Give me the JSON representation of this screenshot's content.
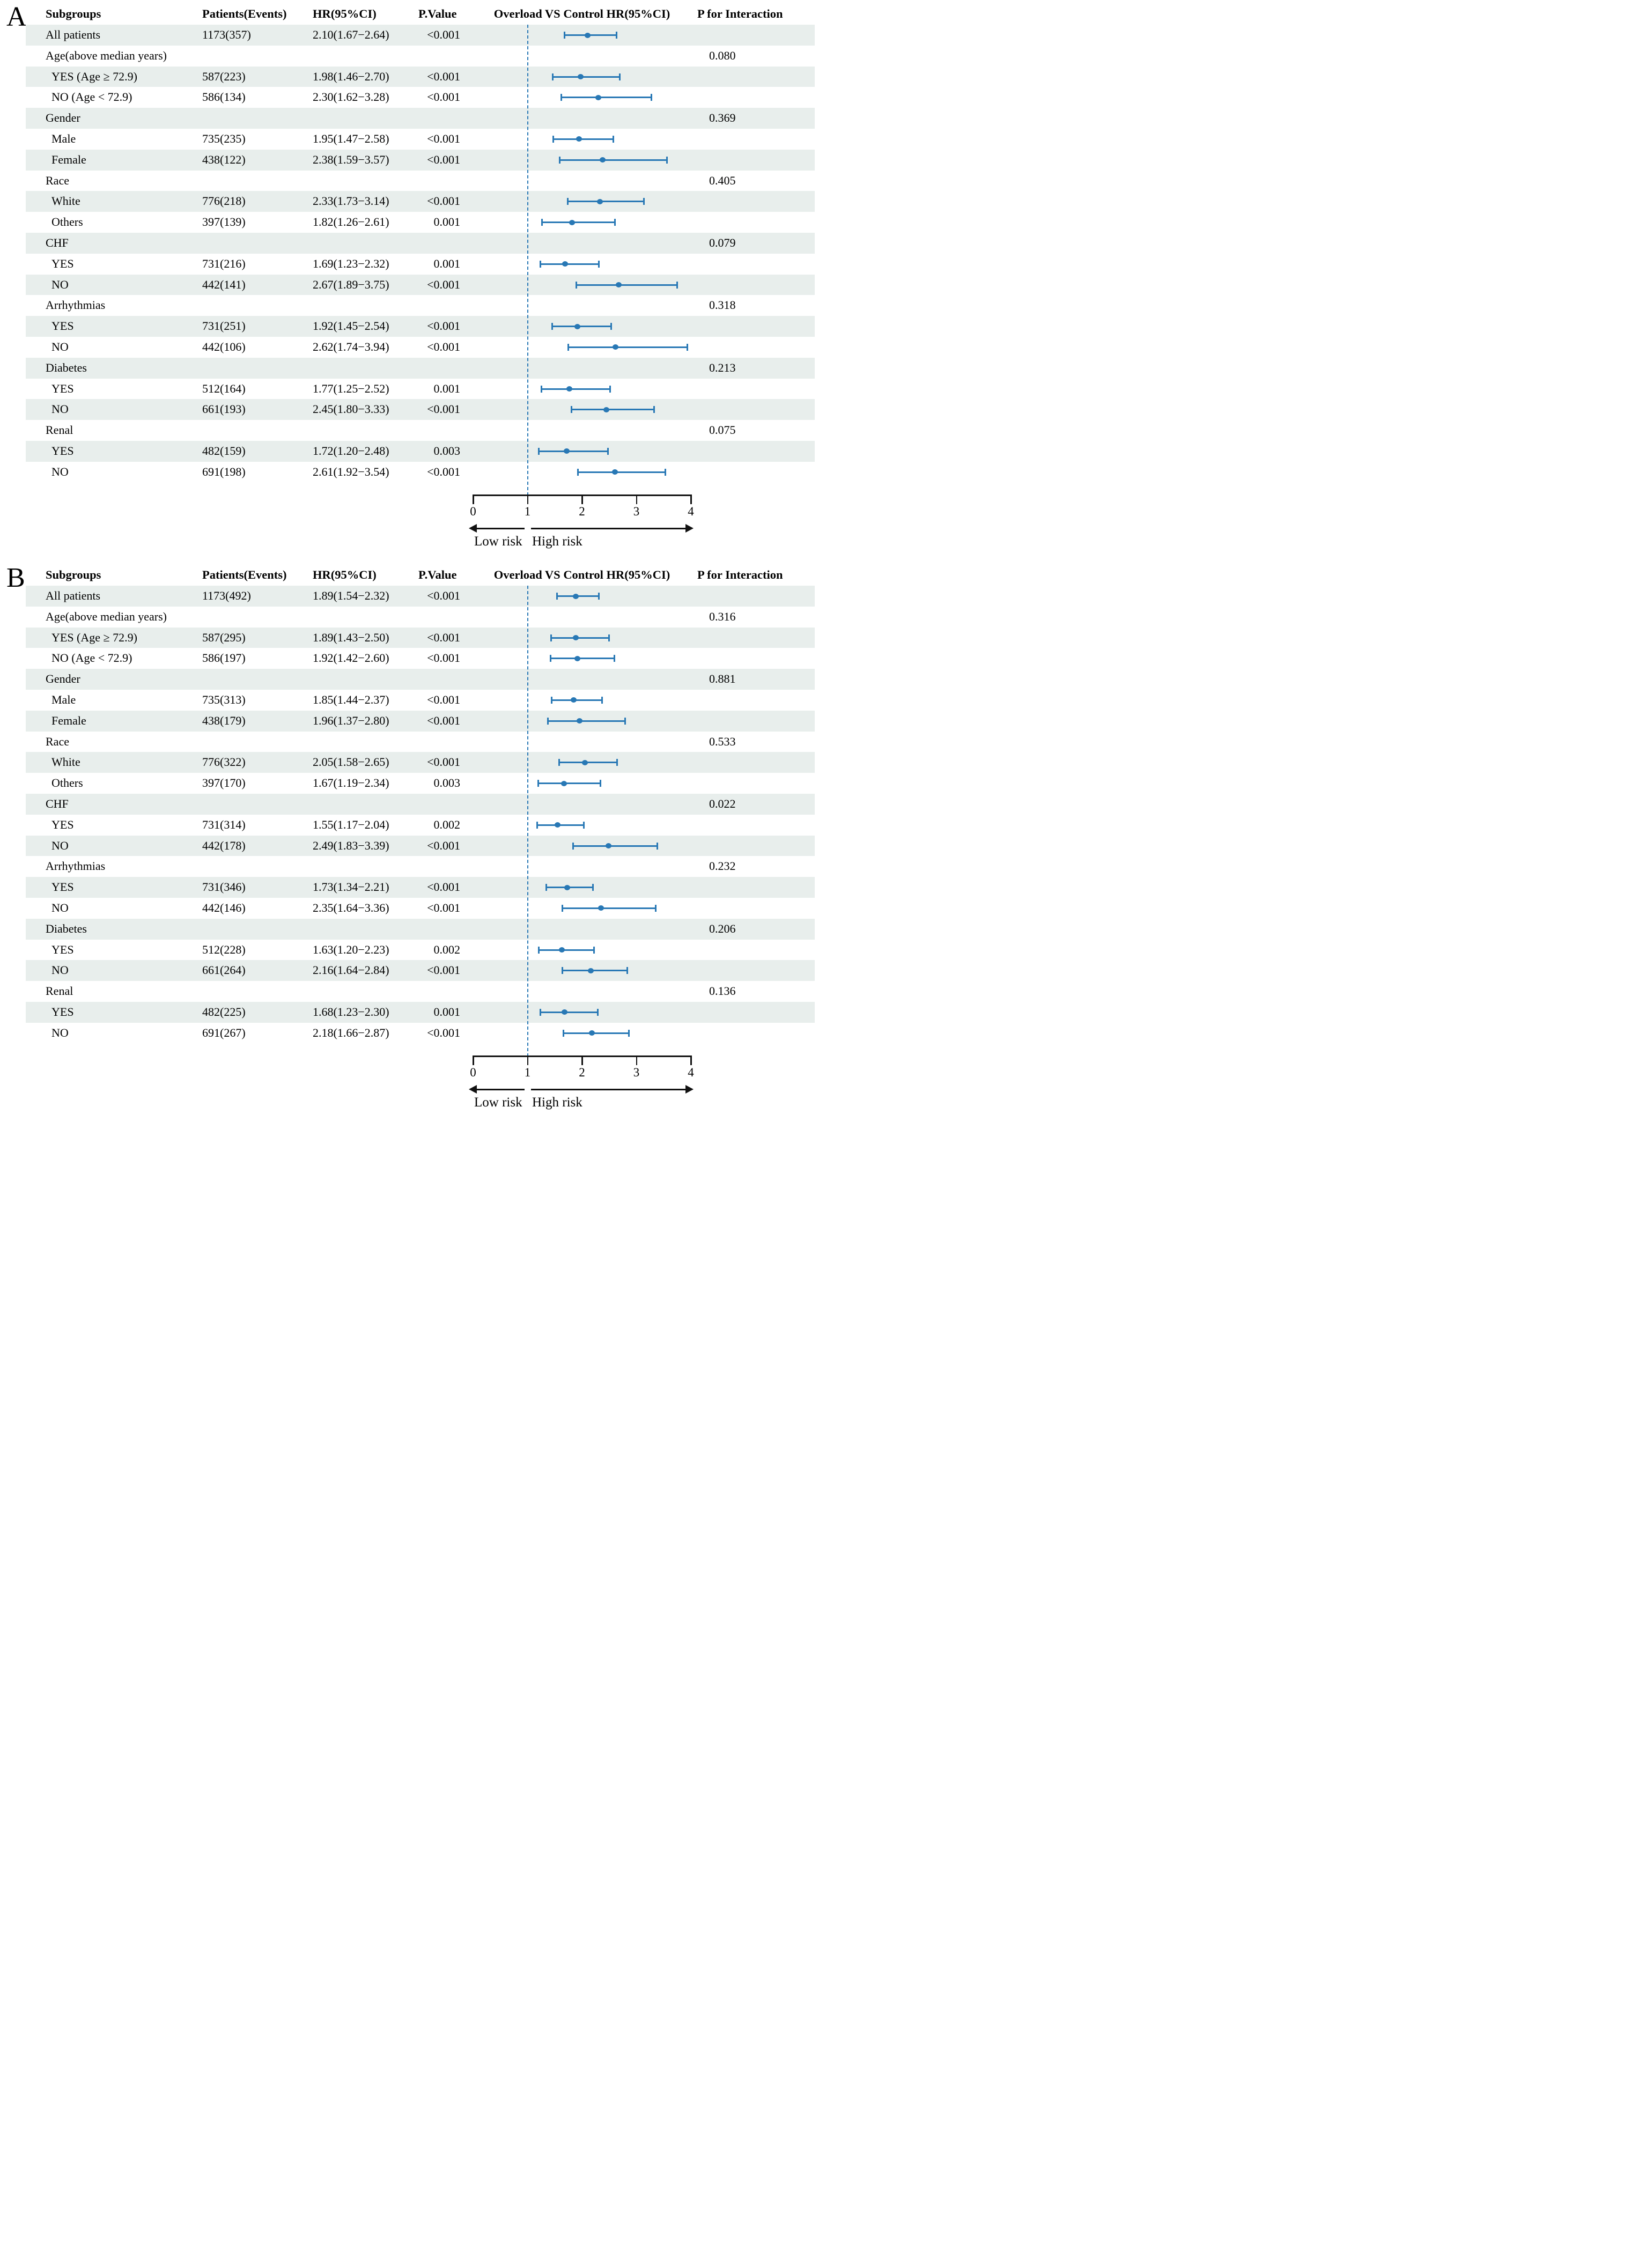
{
  "colors": {
    "accent": "#2878b5",
    "stripe": "#e8eeec",
    "axis": "#111111"
  },
  "chart_data": [
    {
      "type": "scatter",
      "panel_label": "A",
      "title": "Overload VS Control HR(95%CI)",
      "columns": {
        "subgroups": "Subgroups",
        "patients_events": "Patients(Events)",
        "hr_ci": "HR(95%CI)",
        "p_value": "P.Value",
        "plot": "Overload VS Control HR(95%CI)",
        "p_interaction": "P for Interaction"
      },
      "xlim": [
        0,
        4
      ],
      "xticks": [
        "0",
        "1",
        "2",
        "3",
        "4"
      ],
      "reference_line": 1,
      "grid": false,
      "legend_position": "none",
      "low_risk_label": "Low risk",
      "high_risk_label": "High risk",
      "rows": [
        {
          "subgroup": "All patients",
          "patients_events": "1173(357)",
          "hr_ci": "2.10(1.67−2.64)",
          "p_value": "<0.001",
          "hr": 2.1,
          "ci_low": 1.67,
          "ci_high": 2.64
        },
        {
          "subgroup": "Age(above median years)",
          "header": true,
          "p_interaction": "0.080"
        },
        {
          "subgroup": "YES (Age ≥ 72.9)",
          "indent": true,
          "patients_events": "587(223)",
          "hr_ci": "1.98(1.46−2.70)",
          "p_value": "<0.001",
          "hr": 1.98,
          "ci_low": 1.46,
          "ci_high": 2.7
        },
        {
          "subgroup": "NO (Age < 72.9)",
          "indent": true,
          "patients_events": "586(134)",
          "hr_ci": "2.30(1.62−3.28)",
          "p_value": "<0.001",
          "hr": 2.3,
          "ci_low": 1.62,
          "ci_high": 3.28
        },
        {
          "subgroup": "Gender",
          "header": true,
          "p_interaction": "0.369"
        },
        {
          "subgroup": "Male",
          "indent": true,
          "patients_events": "735(235)",
          "hr_ci": "1.95(1.47−2.58)",
          "p_value": "<0.001",
          "hr": 1.95,
          "ci_low": 1.47,
          "ci_high": 2.58
        },
        {
          "subgroup": "Female",
          "indent": true,
          "patients_events": "438(122)",
          "hr_ci": "2.38(1.59−3.57)",
          "p_value": "<0.001",
          "hr": 2.38,
          "ci_low": 1.59,
          "ci_high": 3.57
        },
        {
          "subgroup": "Race",
          "header": true,
          "p_interaction": "0.405"
        },
        {
          "subgroup": "White",
          "indent": true,
          "patients_events": "776(218)",
          "hr_ci": "2.33(1.73−3.14)",
          "p_value": "<0.001",
          "hr": 2.33,
          "ci_low": 1.73,
          "ci_high": 3.14
        },
        {
          "subgroup": "Others",
          "indent": true,
          "patients_events": "397(139)",
          "hr_ci": "1.82(1.26−2.61)",
          "p_value": "0.001",
          "hr": 1.82,
          "ci_low": 1.26,
          "ci_high": 2.61
        },
        {
          "subgroup": "CHF",
          "header": true,
          "p_interaction": "0.079"
        },
        {
          "subgroup": "YES",
          "indent": true,
          "patients_events": "731(216)",
          "hr_ci": "1.69(1.23−2.32)",
          "p_value": "0.001",
          "hr": 1.69,
          "ci_low": 1.23,
          "ci_high": 2.32
        },
        {
          "subgroup": "NO",
          "indent": true,
          "patients_events": "442(141)",
          "hr_ci": "2.67(1.89−3.75)",
          "p_value": "<0.001",
          "hr": 2.67,
          "ci_low": 1.89,
          "ci_high": 3.75
        },
        {
          "subgroup": "Arrhythmias",
          "header": true,
          "p_interaction": "0.318"
        },
        {
          "subgroup": "YES",
          "indent": true,
          "patients_events": "731(251)",
          "hr_ci": "1.92(1.45−2.54)",
          "p_value": "<0.001",
          "hr": 1.92,
          "ci_low": 1.45,
          "ci_high": 2.54
        },
        {
          "subgroup": "NO",
          "indent": true,
          "patients_events": "442(106)",
          "hr_ci": "2.62(1.74−3.94)",
          "p_value": "<0.001",
          "hr": 2.62,
          "ci_low": 1.74,
          "ci_high": 3.94
        },
        {
          "subgroup": "Diabetes",
          "header": true,
          "p_interaction": "0.213"
        },
        {
          "subgroup": "YES",
          "indent": true,
          "patients_events": "512(164)",
          "hr_ci": "1.77(1.25−2.52)",
          "p_value": "0.001",
          "hr": 1.77,
          "ci_low": 1.25,
          "ci_high": 2.52
        },
        {
          "subgroup": "NO",
          "indent": true,
          "patients_events": "661(193)",
          "hr_ci": "2.45(1.80−3.33)",
          "p_value": "<0.001",
          "hr": 2.45,
          "ci_low": 1.8,
          "ci_high": 3.33
        },
        {
          "subgroup": "Renal",
          "header": true,
          "p_interaction": "0.075"
        },
        {
          "subgroup": "YES",
          "indent": true,
          "patients_events": "482(159)",
          "hr_ci": "1.72(1.20−2.48)",
          "p_value": "0.003",
          "hr": 1.72,
          "ci_low": 1.2,
          "ci_high": 2.48
        },
        {
          "subgroup": "NO",
          "indent": true,
          "patients_events": "691(198)",
          "hr_ci": "2.61(1.92−3.54)",
          "p_value": "<0.001",
          "hr": 2.61,
          "ci_low": 1.92,
          "ci_high": 3.54
        }
      ]
    },
    {
      "type": "scatter",
      "panel_label": "B",
      "title": "Overload VS Control HR(95%CI)",
      "columns": {
        "subgroups": "Subgroups",
        "patients_events": "Patients(Events)",
        "hr_ci": "HR(95%CI)",
        "p_value": "P.Value",
        "plot": "Overload VS Control HR(95%CI)",
        "p_interaction": "P for Interaction"
      },
      "xlim": [
        0,
        4
      ],
      "xticks": [
        "0",
        "1",
        "2",
        "3",
        "4"
      ],
      "reference_line": 1,
      "grid": false,
      "legend_position": "none",
      "low_risk_label": "Low risk",
      "high_risk_label": "High risk",
      "rows": [
        {
          "subgroup": "All patients",
          "patients_events": "1173(492)",
          "hr_ci": "1.89(1.54−2.32)",
          "p_value": "<0.001",
          "hr": 1.89,
          "ci_low": 1.54,
          "ci_high": 2.32
        },
        {
          "subgroup": "Age(above median years)",
          "header": true,
          "p_interaction": "0.316"
        },
        {
          "subgroup": "YES (Age ≥ 72.9)",
          "indent": true,
          "patients_events": "587(295)",
          "hr_ci": "1.89(1.43−2.50)",
          "p_value": "<0.001",
          "hr": 1.89,
          "ci_low": 1.43,
          "ci_high": 2.5
        },
        {
          "subgroup": "NO (Age < 72.9)",
          "indent": true,
          "patients_events": "586(197)",
          "hr_ci": "1.92(1.42−2.60)",
          "p_value": "<0.001",
          "hr": 1.92,
          "ci_low": 1.42,
          "ci_high": 2.6
        },
        {
          "subgroup": "Gender",
          "header": true,
          "p_interaction": "0.881"
        },
        {
          "subgroup": "Male",
          "indent": true,
          "patients_events": "735(313)",
          "hr_ci": "1.85(1.44−2.37)",
          "p_value": "<0.001",
          "hr": 1.85,
          "ci_low": 1.44,
          "ci_high": 2.37
        },
        {
          "subgroup": "Female",
          "indent": true,
          "patients_events": "438(179)",
          "hr_ci": "1.96(1.37−2.80)",
          "p_value": "<0.001",
          "hr": 1.96,
          "ci_low": 1.37,
          "ci_high": 2.8
        },
        {
          "subgroup": "Race",
          "header": true,
          "p_interaction": "0.533"
        },
        {
          "subgroup": "White",
          "indent": true,
          "patients_events": "776(322)",
          "hr_ci": "2.05(1.58−2.65)",
          "p_value": "<0.001",
          "hr": 2.05,
          "ci_low": 1.58,
          "ci_high": 2.65
        },
        {
          "subgroup": "Others",
          "indent": true,
          "patients_events": "397(170)",
          "hr_ci": "1.67(1.19−2.34)",
          "p_value": "0.003",
          "hr": 1.67,
          "ci_low": 1.19,
          "ci_high": 2.34
        },
        {
          "subgroup": "CHF",
          "header": true,
          "p_interaction": "0.022"
        },
        {
          "subgroup": "YES",
          "indent": true,
          "patients_events": "731(314)",
          "hr_ci": "1.55(1.17−2.04)",
          "p_value": "0.002",
          "hr": 1.55,
          "ci_low": 1.17,
          "ci_high": 2.04
        },
        {
          "subgroup": "NO",
          "indent": true,
          "patients_events": "442(178)",
          "hr_ci": "2.49(1.83−3.39)",
          "p_value": "<0.001",
          "hr": 2.49,
          "ci_low": 1.83,
          "ci_high": 3.39
        },
        {
          "subgroup": "Arrhythmias",
          "header": true,
          "p_interaction": "0.232"
        },
        {
          "subgroup": "YES",
          "indent": true,
          "patients_events": "731(346)",
          "hr_ci": "1.73(1.34−2.21)",
          "p_value": "<0.001",
          "hr": 1.73,
          "ci_low": 1.34,
          "ci_high": 2.21
        },
        {
          "subgroup": "NO",
          "indent": true,
          "patients_events": "442(146)",
          "hr_ci": "2.35(1.64−3.36)",
          "p_value": "<0.001",
          "hr": 2.35,
          "ci_low": 1.64,
          "ci_high": 3.36
        },
        {
          "subgroup": "Diabetes",
          "header": true,
          "p_interaction": "0.206"
        },
        {
          "subgroup": "YES",
          "indent": true,
          "patients_events": "512(228)",
          "hr_ci": "1.63(1.20−2.23)",
          "p_value": "0.002",
          "hr": 1.63,
          "ci_low": 1.2,
          "ci_high": 2.23
        },
        {
          "subgroup": "NO",
          "indent": true,
          "patients_events": "661(264)",
          "hr_ci": "2.16(1.64−2.84)",
          "p_value": "<0.001",
          "hr": 2.16,
          "ci_low": 1.64,
          "ci_high": 2.84
        },
        {
          "subgroup": "Renal",
          "header": true,
          "p_interaction": "0.136"
        },
        {
          "subgroup": "YES",
          "indent": true,
          "patients_events": "482(225)",
          "hr_ci": "1.68(1.23−2.30)",
          "p_value": "0.001",
          "hr": 1.68,
          "ci_low": 1.23,
          "ci_high": 2.3
        },
        {
          "subgroup": "NO",
          "indent": true,
          "patients_events": "691(267)",
          "hr_ci": "2.18(1.66−2.87)",
          "p_value": "<0.001",
          "hr": 2.18,
          "ci_low": 1.66,
          "ci_high": 2.87
        }
      ]
    }
  ]
}
